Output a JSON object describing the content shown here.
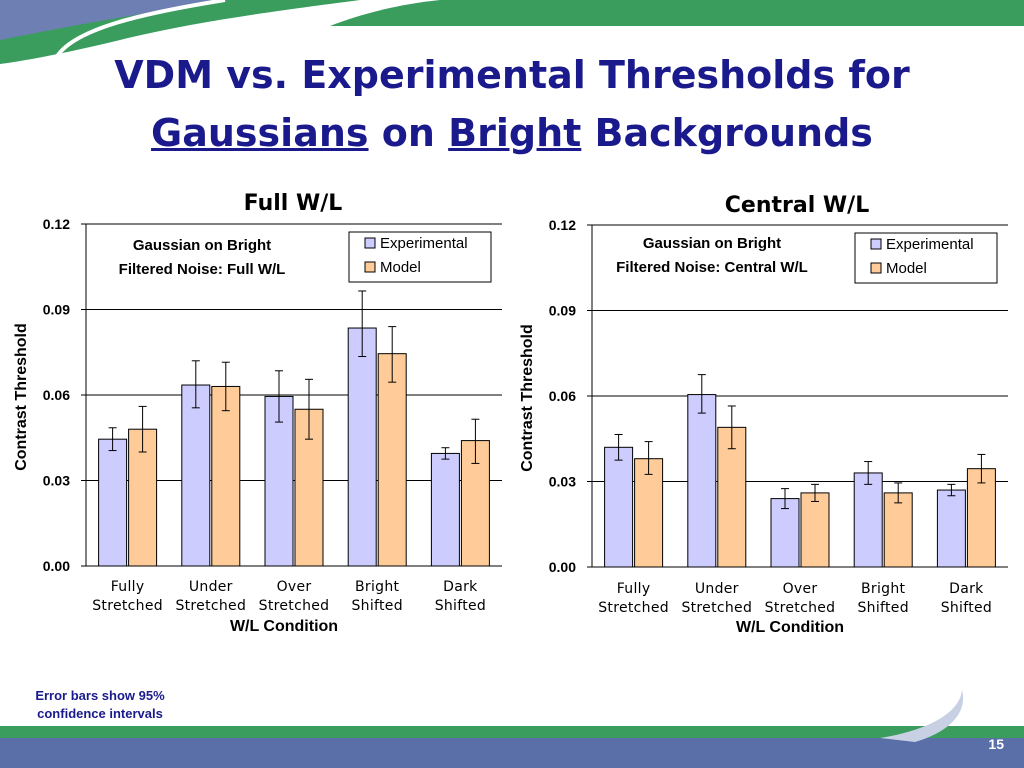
{
  "slide": {
    "title_line1": "VDM vs. Experimental Thresholds for",
    "title_word_gaussians": "Gaussians",
    "title_word_on": "on",
    "title_word_bright": "Bright",
    "title_word_backgrounds": "Backgrounds",
    "footnote_line1": "Error bars show 95%",
    "footnote_line2": "confidence intervals",
    "page_number": "15",
    "colors": {
      "title": "#1a1a8c",
      "band_green": "#2e8b57",
      "band_blue": "#5a6fa8"
    }
  },
  "chart_data": [
    {
      "type": "bar",
      "title": "Full W/L",
      "annotation": [
        "Gaussian on Bright",
        "Filtered Noise: Full W/L"
      ],
      "categories": [
        [
          "Fully",
          "Stretched"
        ],
        [
          "Under",
          "Stretched"
        ],
        [
          "Over",
          "Stretched"
        ],
        [
          "Bright",
          "Shifted"
        ],
        [
          "Dark",
          "Shifted"
        ]
      ],
      "xlabel": "W/L Condition",
      "ylabel": "Contrast Threshold",
      "ylim": [
        0,
        0.12
      ],
      "yticks": [
        "0.00",
        "0.03",
        "0.06",
        "0.09",
        "0.12"
      ],
      "grid": true,
      "legend_position": "top-right",
      "series": [
        {
          "name": "Experimental",
          "color": "#ccccff",
          "values": [
            0.0445,
            0.0635,
            0.0595,
            0.0835,
            0.0395
          ],
          "err_low": [
            0.0405,
            0.0555,
            0.0505,
            0.0735,
            0.0375
          ],
          "err_high": [
            0.0485,
            0.072,
            0.0685,
            0.0965,
            0.0415
          ]
        },
        {
          "name": "Model",
          "color": "#ffcc99",
          "values": [
            0.048,
            0.063,
            0.055,
            0.0745,
            0.044
          ],
          "err_low": [
            0.04,
            0.0545,
            0.0445,
            0.0645,
            0.036
          ],
          "err_high": [
            0.056,
            0.0715,
            0.0655,
            0.084,
            0.0515
          ]
        }
      ]
    },
    {
      "type": "bar",
      "title": "Central W/L",
      "annotation": [
        "Gaussian on Bright",
        "Filtered Noise: Central W/L"
      ],
      "categories": [
        [
          "Fully",
          "Stretched"
        ],
        [
          "Under",
          "Stretched"
        ],
        [
          "Over",
          "Stretched"
        ],
        [
          "Bright",
          "Shifted"
        ],
        [
          "Dark",
          "Shifted"
        ]
      ],
      "xlabel": "W/L Condition",
      "ylabel": "Contrast Threshold",
      "ylim": [
        0,
        0.12
      ],
      "yticks": [
        "0.00",
        "0.03",
        "0.06",
        "0.09",
        "0.12"
      ],
      "grid": true,
      "legend_position": "top-right",
      "series": [
        {
          "name": "Experimental",
          "color": "#ccccff",
          "values": [
            0.042,
            0.0605,
            0.024,
            0.033,
            0.027
          ],
          "err_low": [
            0.0375,
            0.054,
            0.0205,
            0.029,
            0.025
          ],
          "err_high": [
            0.0465,
            0.0675,
            0.0275,
            0.037,
            0.029
          ]
        },
        {
          "name": "Model",
          "color": "#ffcc99",
          "values": [
            0.038,
            0.049,
            0.026,
            0.026,
            0.0345
          ],
          "err_low": [
            0.0325,
            0.0415,
            0.023,
            0.0225,
            0.0295
          ],
          "err_high": [
            0.044,
            0.0565,
            0.029,
            0.0295,
            0.0395
          ]
        }
      ]
    }
  ]
}
